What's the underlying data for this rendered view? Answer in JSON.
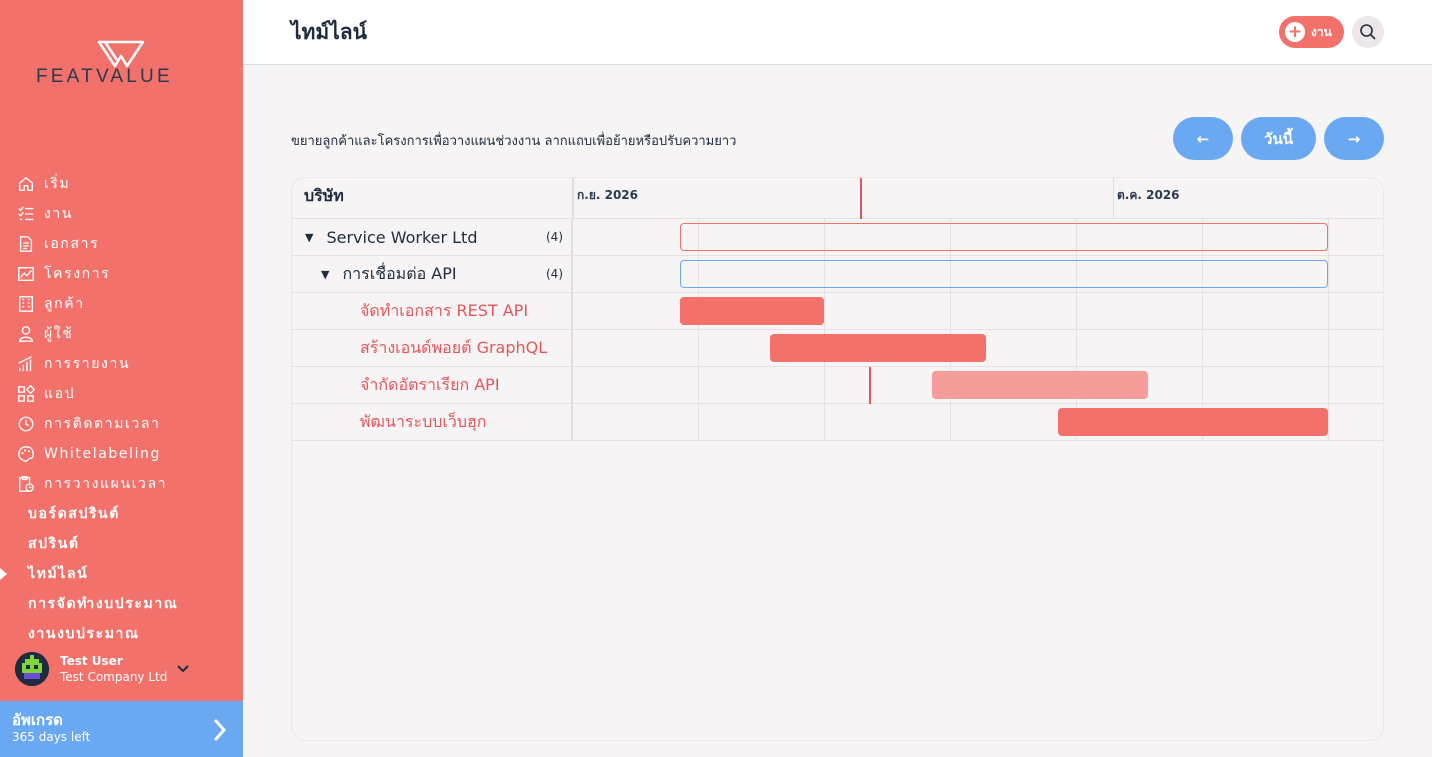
{
  "brand": {
    "name": "FEATVALUE"
  },
  "sidebar": {
    "items": [
      {
        "label": "เริ่ม",
        "icon": "home-icon"
      },
      {
        "label": "งาน",
        "icon": "tasks-icon"
      },
      {
        "label": "เอกสาร",
        "icon": "document-icon"
      },
      {
        "label": "โครงการ",
        "icon": "projects-icon"
      },
      {
        "label": "ลูกค้า",
        "icon": "building-icon"
      },
      {
        "label": "ผู้ใช้",
        "icon": "user-icon"
      },
      {
        "label": "การรายงาน",
        "icon": "chart-icon"
      },
      {
        "label": "แอป",
        "icon": "apps-icon"
      },
      {
        "label": "การติดตามเวลา",
        "icon": "timer-icon"
      },
      {
        "label": "Whitelabeling",
        "icon": "palette-icon"
      },
      {
        "label": "การวางแผนเวลา",
        "icon": "planning-icon"
      }
    ],
    "subitems": [
      {
        "label": "บอร์ดสปรินต์"
      },
      {
        "label": "สปรินต์"
      },
      {
        "label": "ไทม์ไลน์",
        "active": true
      },
      {
        "label": "การจัดทำงบประมาณ"
      },
      {
        "label": "งานงบประมาณ"
      }
    ],
    "user": {
      "name": "Test User",
      "company": "Test Company Ltd"
    },
    "upgrade": {
      "title": "อัพเกรด",
      "subtitle": "365 days left"
    }
  },
  "header": {
    "title": "ไทม์ไลน์",
    "add_label": "งาน"
  },
  "main": {
    "description": "ขยายลูกค้าและโครงการเพื่อวางแผนช่วงงาน ลากแถบเพื่อย้ายหรือปรับความยาว",
    "prev_label": "←",
    "today_label": "วันนี้",
    "next_label": "→"
  },
  "gantt": {
    "column_header": "บริษัท",
    "months": [
      "ก.ย. 2026",
      "ต.ค. 2026"
    ],
    "rows": [
      {
        "label": "Service Worker Ltd",
        "count": "(4)",
        "level": 0
      },
      {
        "label": "การเชื่อมต่อ API",
        "count": "(4)",
        "level": 1
      },
      {
        "label": "จัดทำเอกสาร REST API",
        "level": 2
      },
      {
        "label": "สร้างเอนด์พอยต์ GraphQL",
        "level": 2
      },
      {
        "label": "จำกัดอัตราเรียก API",
        "level": 2
      },
      {
        "label": "พัฒนาระบบเว็บฮุก",
        "level": 2
      }
    ]
  },
  "colors": {
    "accent": "#f2716b",
    "blue": "#6aa9f2",
    "dark": "#1f2c3d"
  }
}
